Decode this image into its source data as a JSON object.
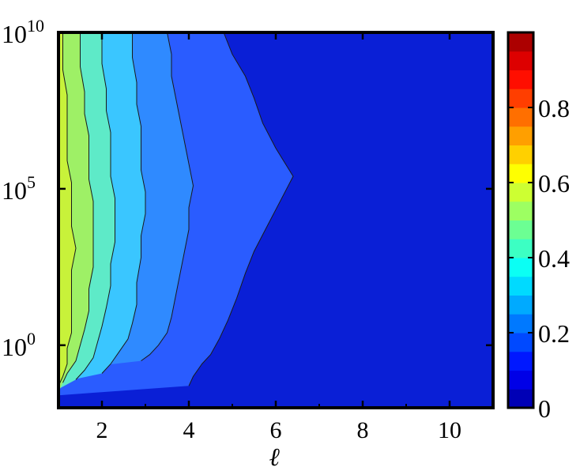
{
  "chart_data": {
    "type": "heatmap",
    "title": "",
    "xlabel": "ℓ",
    "ylabel": "",
    "x_range": [
      1,
      11
    ],
    "y_range_log10": [
      -2,
      10
    ],
    "y_scale": "log",
    "x_ticks": [
      {
        "value": 2,
        "label": "2"
      },
      {
        "value": 4,
        "label": "4"
      },
      {
        "value": 6,
        "label": "6"
      },
      {
        "value": 8,
        "label": "8"
      },
      {
        "value": 10,
        "label": "10"
      }
    ],
    "y_ticks": [
      {
        "exp": 0,
        "base": "10",
        "sup": "0"
      },
      {
        "exp": 5,
        "base": "10",
        "sup": "5"
      },
      {
        "exp": 10,
        "base": "10",
        "sup": "10"
      }
    ],
    "colorbar": {
      "range": [
        0,
        1
      ],
      "ticks": [
        {
          "value": 0,
          "label": "0"
        },
        {
          "value": 0.2,
          "label": "0.2"
        },
        {
          "value": 0.4,
          "label": "0.4"
        },
        {
          "value": 0.6,
          "label": "0.6"
        },
        {
          "value": 0.8,
          "label": "0.8"
        }
      ],
      "colormap": "jet",
      "levels": 20
    },
    "contour_levels": [
      0.1,
      0.2,
      0.3,
      0.4,
      0.5,
      0.55
    ],
    "contour_fill_colors": [
      "#2a5cff",
      "#2f8aff",
      "#3ac6ff",
      "#5eeac8",
      "#9ef066",
      "#c8f23a",
      "#ffe800"
    ],
    "background_color": "#0a1fd6",
    "contour_boundaries": [
      {
        "level": 0.1,
        "x": [
          4.0,
          4.1,
          4.3,
          4.5,
          4.7,
          4.9,
          5.1,
          5.3,
          5.5,
          5.8,
          6.1,
          6.4,
          6.0,
          5.7,
          5.5,
          5.3,
          5.0,
          4.8
        ],
        "log10_y": [
          -1.3,
          -1.0,
          -0.6,
          -0.3,
          0.2,
          0.8,
          1.5,
          2.3,
          3.0,
          3.8,
          4.6,
          5.4,
          6.3,
          7.1,
          7.9,
          8.6,
          9.3,
          10.0
        ]
      },
      {
        "level": 0.2,
        "x": [
          2.9,
          3.1,
          3.3,
          3.5,
          3.6,
          3.7,
          3.8,
          3.9,
          4.0,
          4.0,
          4.1,
          4.0,
          3.9,
          3.8,
          3.7,
          3.6,
          3.6,
          3.5
        ],
        "log10_y": [
          -0.5,
          -0.3,
          0.0,
          0.4,
          0.9,
          1.6,
          2.3,
          3.0,
          3.7,
          4.4,
          5.1,
          5.8,
          6.5,
          7.2,
          7.9,
          8.6,
          9.3,
          10.0
        ]
      },
      {
        "level": 0.3,
        "x": [
          2.0,
          2.2,
          2.4,
          2.6,
          2.7,
          2.8,
          2.8,
          2.9,
          2.9,
          3.0,
          3.0,
          2.9,
          2.9,
          2.9,
          2.8,
          2.8,
          2.7,
          2.7
        ],
        "log10_y": [
          -0.9,
          -0.6,
          -0.2,
          0.2,
          0.7,
          1.3,
          2.0,
          2.8,
          3.5,
          4.2,
          4.9,
          5.6,
          6.3,
          7.0,
          7.7,
          8.4,
          9.2,
          10.0
        ]
      },
      {
        "level": 0.4,
        "x": [
          1.4,
          1.6,
          1.8,
          1.9,
          2.0,
          2.1,
          2.2,
          2.2,
          2.3,
          2.3,
          2.3,
          2.2,
          2.2,
          2.2,
          2.1,
          2.1,
          2.0,
          2.0
        ],
        "log10_y": [
          -1.1,
          -0.8,
          -0.4,
          0.1,
          0.6,
          1.2,
          1.9,
          2.6,
          3.3,
          4.0,
          4.7,
          5.4,
          6.1,
          6.8,
          7.5,
          8.2,
          9.0,
          10.0
        ]
      },
      {
        "level": 0.5,
        "x": [
          1.1,
          1.2,
          1.4,
          1.5,
          1.6,
          1.7,
          1.7,
          1.8,
          1.8,
          1.8,
          1.8,
          1.7,
          1.7,
          1.7,
          1.6,
          1.6,
          1.5,
          1.5
        ],
        "log10_y": [
          -1.2,
          -0.9,
          -0.5,
          0.0,
          0.5,
          1.1,
          1.8,
          2.5,
          3.2,
          3.9,
          4.6,
          5.3,
          6.0,
          6.7,
          7.4,
          8.1,
          8.9,
          10.0
        ]
      },
      {
        "level": 0.55,
        "x": [
          1.0,
          1.1,
          1.2,
          1.2,
          1.3,
          1.3,
          1.3,
          1.3,
          1.4,
          1.3,
          1.3,
          1.3,
          1.2,
          1.2,
          1.2,
          1.2,
          1.1,
          1.1
        ],
        "log10_y": [
          -1.3,
          -1.0,
          -0.6,
          -0.1,
          0.4,
          1.0,
          1.7,
          2.4,
          3.1,
          3.8,
          4.5,
          5.2,
          5.9,
          6.6,
          7.3,
          8.0,
          8.8,
          10.0
        ]
      }
    ]
  }
}
